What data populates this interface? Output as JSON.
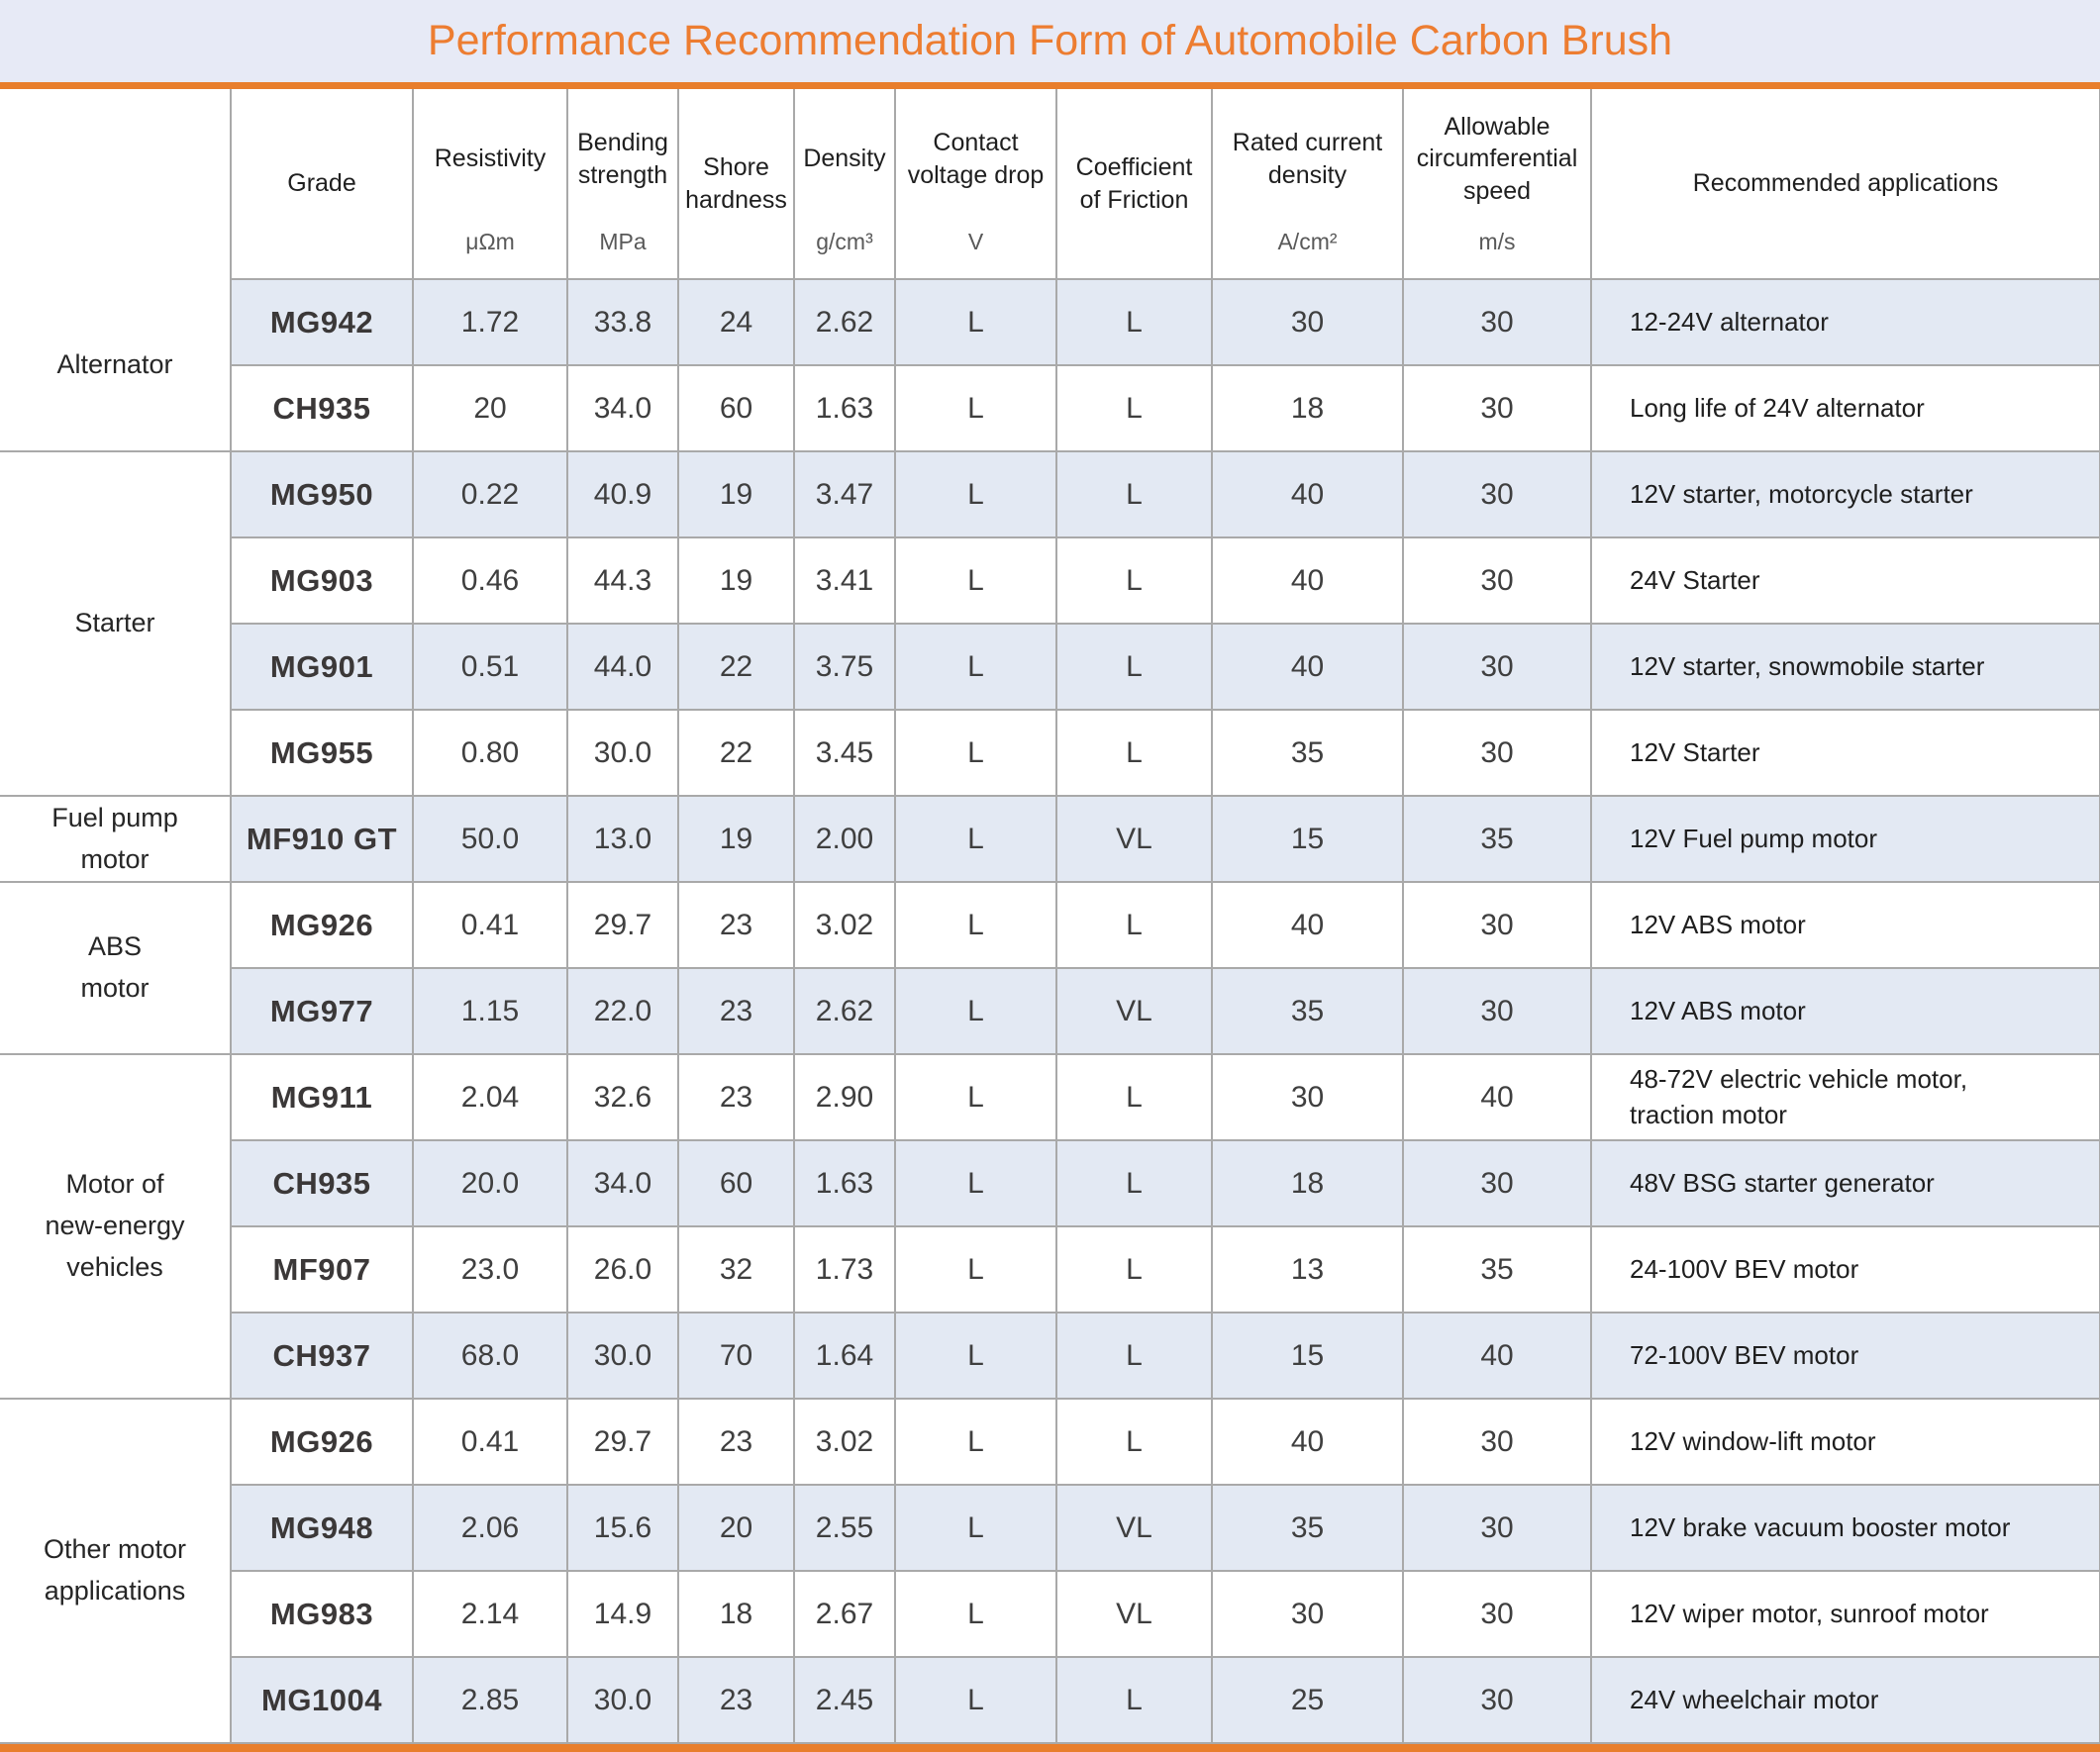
{
  "title": "Performance Recommendation Form of Automobile Carbon Brush",
  "colors": {
    "accent_orange": "#ED7D31",
    "rule_orange": "#E87E2C",
    "title_band_blue": "#E7EAF6",
    "row_stripe_blue": "#E3E9F3",
    "grid_gray": "#A9A9A9"
  },
  "table": {
    "columns": [
      {
        "name": "Grade",
        "unit": ""
      },
      {
        "name": "Resistivity",
        "unit": "μΩm"
      },
      {
        "name": "Bending\nstrength",
        "unit": "MPa"
      },
      {
        "name": "Shore\nhardness",
        "unit": ""
      },
      {
        "name": "Density",
        "unit": "g/cm³"
      },
      {
        "name": "Contact\nvoltage drop",
        "unit": "V"
      },
      {
        "name": "Coefficient\nof Friction",
        "unit": ""
      },
      {
        "name": "Rated current\ndensity",
        "unit": "A/cm²"
      },
      {
        "name": "Allowable\ncircumferential\nspeed",
        "unit": "m/s"
      },
      {
        "name": "Recommended applications",
        "unit": ""
      }
    ],
    "groups": [
      {
        "category": "Alternator",
        "rows": [
          {
            "grade": "MG942",
            "values": [
              "1.72",
              "33.8",
              "24",
              "2.62",
              "L",
              "L",
              "30",
              "30"
            ],
            "application": "12-24V alternator"
          },
          {
            "grade": "CH935",
            "values": [
              "20",
              "34.0",
              "60",
              "1.63",
              "L",
              "L",
              "18",
              "30"
            ],
            "application": "Long life of 24V alternator"
          }
        ]
      },
      {
        "category": "Starter",
        "rows": [
          {
            "grade": "MG950",
            "values": [
              "0.22",
              "40.9",
              "19",
              "3.47",
              "L",
              "L",
              "40",
              "30"
            ],
            "application": "12V starter, motorcycle starter"
          },
          {
            "grade": "MG903",
            "values": [
              "0.46",
              "44.3",
              "19",
              "3.41",
              "L",
              "L",
              "40",
              "30"
            ],
            "application": "24V Starter"
          },
          {
            "grade": "MG901",
            "values": [
              "0.51",
              "44.0",
              "22",
              "3.75",
              "L",
              "L",
              "40",
              "30"
            ],
            "application": "12V starter, snowmobile starter"
          },
          {
            "grade": "MG955",
            "values": [
              "0.80",
              "30.0",
              "22",
              "3.45",
              "L",
              "L",
              "35",
              "30"
            ],
            "application": "12V Starter"
          }
        ]
      },
      {
        "category": "Fuel pump\nmotor",
        "rows": [
          {
            "grade": "MF910 GT",
            "values": [
              "50.0",
              "13.0",
              "19",
              "2.00",
              "L",
              "VL",
              "15",
              "35"
            ],
            "application": "12V Fuel pump motor"
          }
        ]
      },
      {
        "category": "ABS\nmotor",
        "rows": [
          {
            "grade": "MG926",
            "values": [
              "0.41",
              "29.7",
              "23",
              "3.02",
              "L",
              "L",
              "40",
              "30"
            ],
            "application": "12V ABS motor"
          },
          {
            "grade": "MG977",
            "values": [
              "1.15",
              "22.0",
              "23",
              "2.62",
              "L",
              "VL",
              "35",
              "30"
            ],
            "application": "12V ABS motor"
          }
        ]
      },
      {
        "category": "Motor of\nnew-energy\nvehicles",
        "rows": [
          {
            "grade": "MG911",
            "values": [
              "2.04",
              "32.6",
              "23",
              "2.90",
              "L",
              "L",
              "30",
              "40"
            ],
            "application": "48-72V electric vehicle motor,\ntraction motor"
          },
          {
            "grade": "CH935",
            "values": [
              "20.0",
              "34.0",
              "60",
              "1.63",
              "L",
              "L",
              "18",
              "30"
            ],
            "application": "48V BSG starter generator"
          },
          {
            "grade": "MF907",
            "values": [
              "23.0",
              "26.0",
              "32",
              "1.73",
              "L",
              "L",
              "13",
              "35"
            ],
            "application": "24-100V BEV motor"
          },
          {
            "grade": "CH937",
            "values": [
              "68.0",
              "30.0",
              "70",
              "1.64",
              "L",
              "L",
              "15",
              "40"
            ],
            "application": "72-100V BEV motor"
          }
        ]
      },
      {
        "category": "Other motor\napplications",
        "rows": [
          {
            "grade": "MG926",
            "values": [
              "0.41",
              "29.7",
              "23",
              "3.02",
              "L",
              "L",
              "40",
              "30"
            ],
            "application": "12V window-lift motor"
          },
          {
            "grade": "MG948",
            "values": [
              "2.06",
              "15.6",
              "20",
              "2.55",
              "L",
              "VL",
              "35",
              "30"
            ],
            "application": "12V brake vacuum booster motor"
          },
          {
            "grade": "MG983",
            "values": [
              "2.14",
              "14.9",
              "18",
              "2.67",
              "L",
              "VL",
              "30",
              "30"
            ],
            "application": "12V wiper motor, sunroof motor"
          },
          {
            "grade": "MG1004",
            "values": [
              "2.85",
              "30.0",
              "23",
              "2.45",
              "L",
              "L",
              "25",
              "30"
            ],
            "application": "24V wheelchair motor"
          }
        ]
      }
    ]
  }
}
